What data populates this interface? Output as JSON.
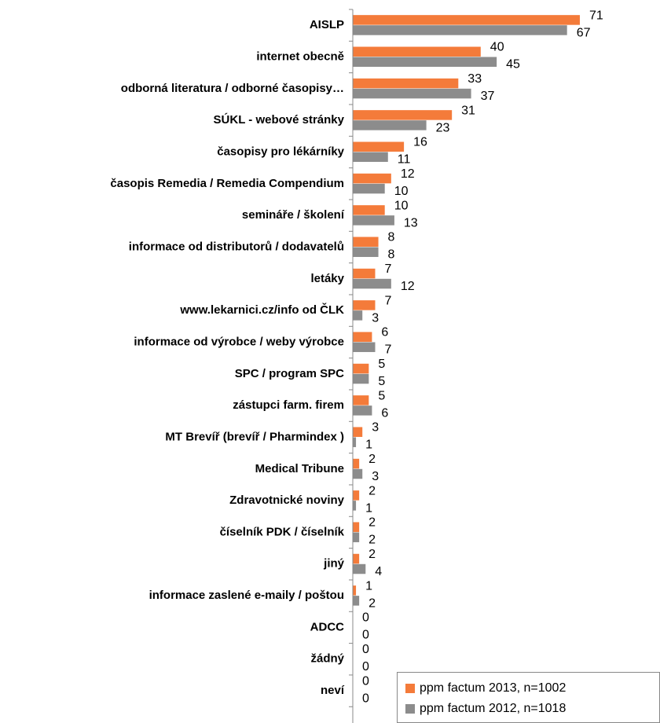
{
  "chart_data": {
    "type": "bar",
    "orientation": "horizontal",
    "categories": [
      "AISLP",
      "internet obecně",
      "odborná literatura / odborné časopisy…",
      "SÚKL - webové stránky",
      "časopisy pro lékárníky",
      "časopis Remedia / Remedia Compendium",
      "semináře / školení",
      "informace od distributorů / dodavatelů",
      "letáky",
      "www.lekarnici.cz/info od ČLK",
      "informace od výrobce / weby výrobce",
      "SPC / program SPC",
      "zástupci farm. firem",
      "MT Brevíř (brevíř / Pharmindex )",
      "Medical Tribune",
      "Zdravotnické noviny",
      "číselník PDK / číselník",
      "jiný",
      "informace zaslené e-maily / poštou",
      "ADCC",
      "žádný",
      "neví"
    ],
    "series": [
      {
        "name": "ppm factum 2013, n=1002",
        "color": "#f47b3a",
        "values": [
          71,
          40,
          33,
          31,
          16,
          12,
          10,
          8,
          7,
          7,
          6,
          5,
          5,
          3,
          2,
          2,
          2,
          2,
          1,
          0,
          0,
          0
        ]
      },
      {
        "name": "ppm factum 2012, n=1018",
        "color": "#8c8c8c",
        "values": [
          67,
          45,
          37,
          23,
          11,
          10,
          13,
          8,
          12,
          3,
          7,
          5,
          6,
          1,
          3,
          1,
          2,
          4,
          2,
          0,
          0,
          0
        ]
      }
    ],
    "legend": "lower right"
  }
}
